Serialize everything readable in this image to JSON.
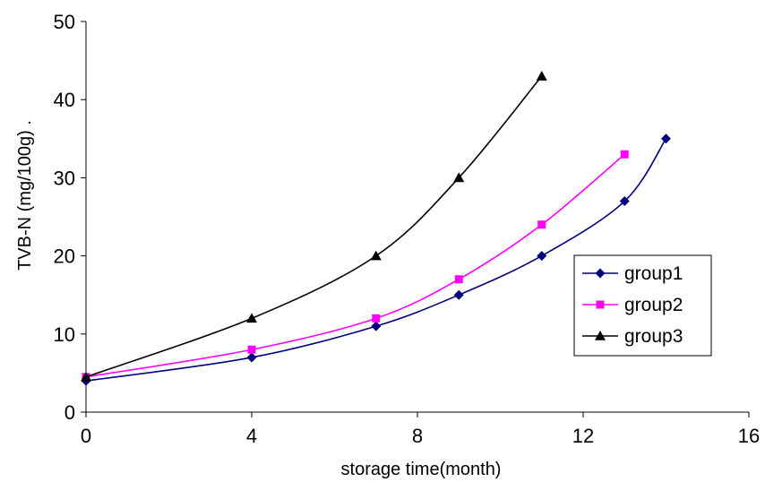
{
  "chart_data": {
    "type": "line",
    "title": "",
    "xlabel": "storage time(month)",
    "ylabel": "TVB-N  (mg/100g) .",
    "xlim": [
      0,
      16
    ],
    "ylim": [
      0,
      50
    ],
    "xticks": [
      0,
      4,
      8,
      12,
      16
    ],
    "yticks": [
      0,
      10,
      20,
      30,
      40,
      50
    ],
    "grid": false,
    "legend_position": "right",
    "series": [
      {
        "name": "group1",
        "color": "#00007f",
        "marker": "diamond",
        "x": [
          0,
          4,
          7,
          9,
          11,
          13,
          14
        ],
        "y": [
          4,
          7,
          11,
          15,
          20,
          27,
          35
        ]
      },
      {
        "name": "group2",
        "color": "#ff00ff",
        "marker": "square",
        "x": [
          0,
          4,
          7,
          9,
          11,
          13
        ],
        "y": [
          4.5,
          8,
          12,
          17,
          24,
          33
        ]
      },
      {
        "name": "group3",
        "color": "#000000",
        "marker": "triangle",
        "x": [
          0,
          4,
          7,
          9,
          11
        ],
        "y": [
          4.5,
          12,
          20,
          30,
          43
        ]
      }
    ]
  }
}
